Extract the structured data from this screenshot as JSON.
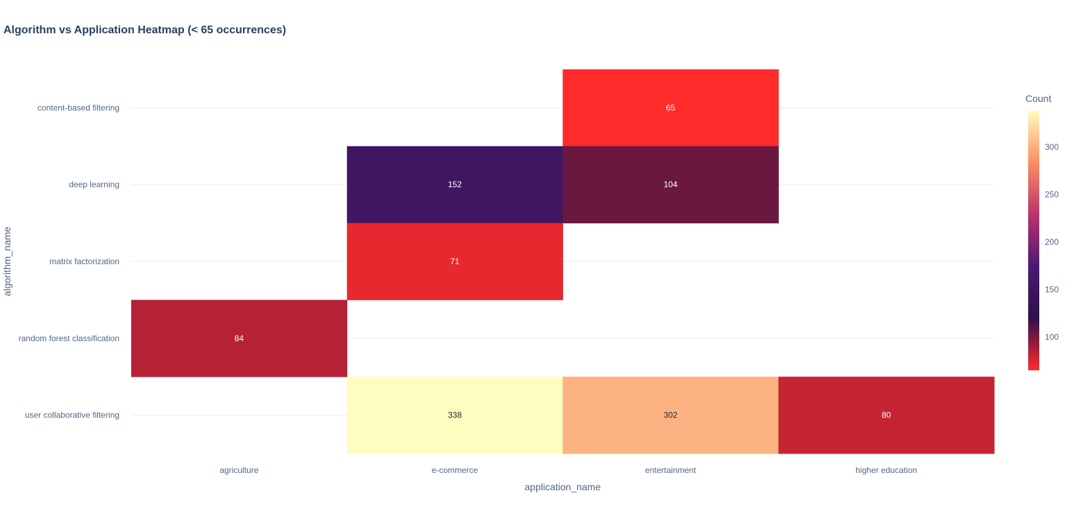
{
  "chart_data": {
    "type": "heatmap",
    "title": "Algorithm vs Application Heatmap (< 65 occurrences)",
    "xlabel": "application_name",
    "ylabel": "algorithm_name",
    "x_categories": [
      "agriculture",
      "e-commerce",
      "entertainment",
      "higher education"
    ],
    "y_categories": [
      "content-based filtering",
      "deep learning",
      "matrix factorization",
      "random forest classification",
      "user collaborative filtering"
    ],
    "values": [
      [
        null,
        null,
        65,
        null
      ],
      [
        null,
        152,
        104,
        null
      ],
      [
        null,
        71,
        null,
        null
      ],
      [
        84,
        null,
        null,
        null
      ],
      [
        null,
        338,
        302,
        80
      ]
    ],
    "colorbar": {
      "title": "Count",
      "ticks": [
        100,
        150,
        200,
        250,
        300
      ],
      "range": [
        65,
        338
      ],
      "colorscale": "magma (reversed): red → purple → dark → light yellow"
    },
    "grid": true
  },
  "colors": {
    "grid": "#ebebeb",
    "text_dark": "#2a3f5f",
    "text_axis": "#506784",
    "scale": [
      "#ff2b2b",
      "#2e1149",
      "#4a1a73",
      "#b9336e",
      "#fb8d61",
      "#fefcbe"
    ]
  }
}
